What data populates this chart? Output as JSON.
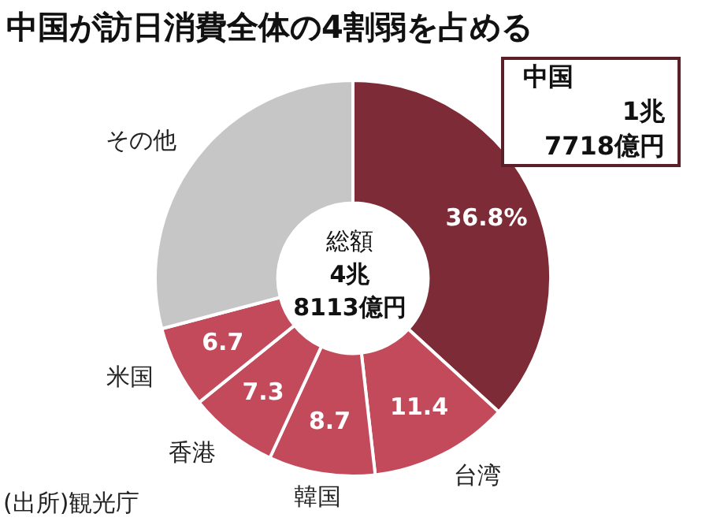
{
  "chart_data": {
    "type": "donut",
    "title": "中国が訪日消費全体の4割弱を占める",
    "categories": [
      "中国",
      "台湾",
      "韓国",
      "香港",
      "米国",
      "その他"
    ],
    "values": [
      36.8,
      11.4,
      8.7,
      7.3,
      6.7,
      29.1
    ],
    "colors": [
      "#7d2b36",
      "#c24a5b",
      "#c24a5b",
      "#c24a5b",
      "#c24a5b",
      "#c6c6c6"
    ],
    "value_labels": [
      "36.8%",
      "11.4",
      "8.7",
      "7.3",
      "6.7",
      null
    ],
    "legend": false,
    "annotations": [
      "総額\n4兆\n8113億円",
      {
        "text": "1兆\n7718億円",
        "x": "中国"
      },
      "(出所)観光庁"
    ]
  }
}
